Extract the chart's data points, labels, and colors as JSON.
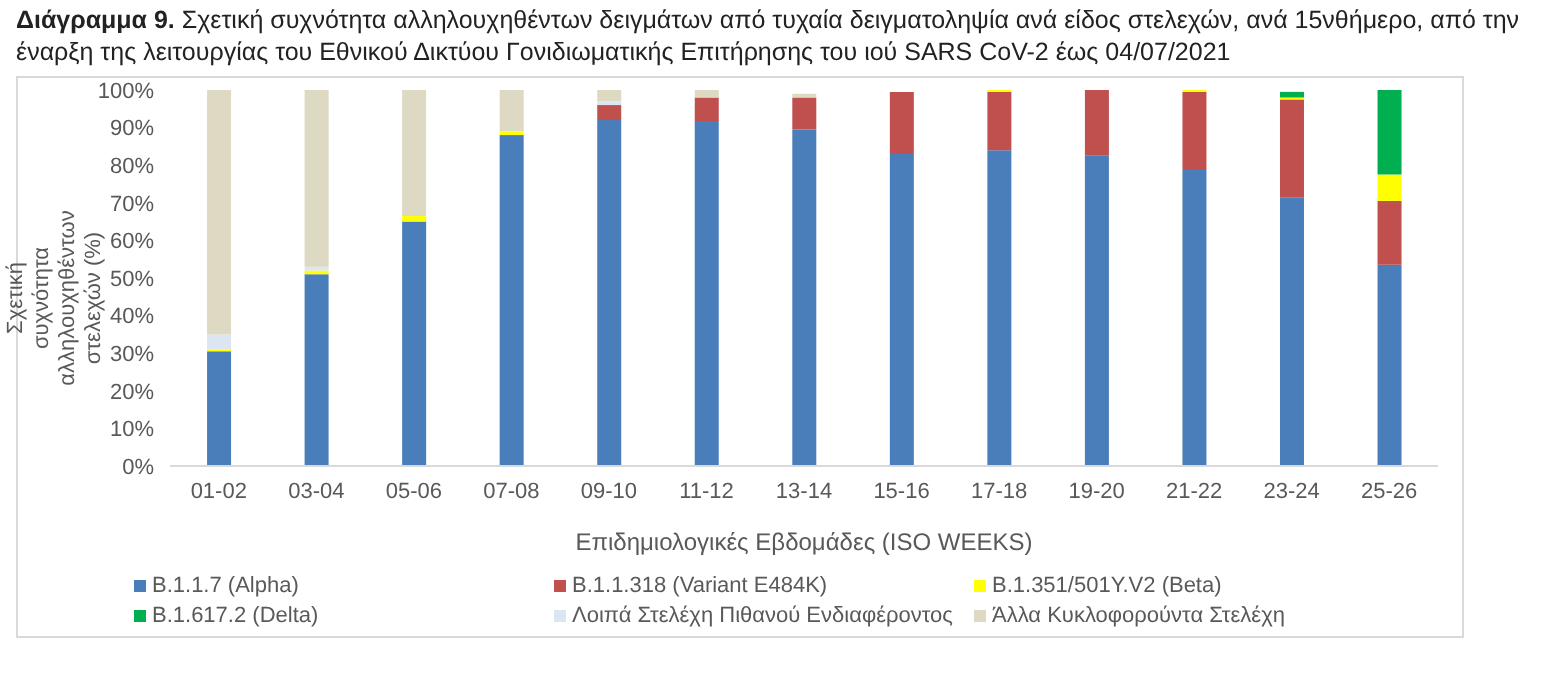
{
  "chart_data": {
    "type": "bar",
    "stacked": true,
    "title": "Διάγραμμα 9.",
    "subtitle": "Σχετική συχνότητα αλληλουχηθέντων δειγμάτων από τυχαία δειγματοληψία ανά είδος στελεχών, ανά 15νθήμερο, από την έναρξη της λειτουργίας του Εθνικού Δικτύου Γονιδιωματικής Επιτήρησης του ιού SARS CoV-2 έως 04/07/2021",
    "xlabel": "Επιδημιολογικές Εβδομάδες (ISO WEEKS)",
    "ylabel": "Σχετική συχνότητα αλληλουχηθέντων στελεχών (%)",
    "categories": [
      "01-02",
      "03-04",
      "05-06",
      "07-08",
      "09-10",
      "11-12",
      "13-14",
      "15-16",
      "17-18",
      "19-20",
      "21-22",
      "23-24",
      "25-26"
    ],
    "series": [
      {
        "name": "B.1.1.7 (Alpha)",
        "color": "#4a7ebb",
        "values": [
          30.5,
          51,
          65,
          88,
          92,
          91.5,
          89.5,
          83,
          84,
          82.5,
          79,
          71.5,
          53.5
        ]
      },
      {
        "name": "B.1.1.318 (Variant E484K)",
        "color": "#c0504d",
        "values": [
          0,
          0,
          0,
          0,
          4,
          6.5,
          8.5,
          16.5,
          15.5,
          17.5,
          20.5,
          26,
          17
        ]
      },
      {
        "name": "B.1.351/501Y.V2 (Beta)",
        "color": "#ffff00",
        "values": [
          0.5,
          1,
          1.5,
          1,
          0,
          0,
          0,
          0,
          0.5,
          0,
          0.5,
          0.5,
          7
        ]
      },
      {
        "name": "B.1.617.2 (Delta)",
        "color": "#00b050",
        "values": [
          0,
          0,
          0,
          0,
          0,
          0,
          0,
          0,
          0,
          0,
          0,
          1.5,
          22.5
        ]
      },
      {
        "name": "Λοιπά Στελέχη Πιθανού Ενδιαφέροντος",
        "color": "#dce6f2",
        "values": [
          4,
          1,
          0,
          0,
          1,
          0,
          0,
          0,
          0,
          0,
          0,
          0,
          0
        ]
      },
      {
        "name": "Άλλα Κυκλοφορούντα Στελέχη",
        "color": "#ddd9c3",
        "values": [
          65,
          47,
          33.5,
          11,
          3,
          2,
          1,
          null,
          0,
          0,
          0,
          null,
          0
        ]
      }
    ],
    "ylim": [
      0,
      100
    ],
    "yticks": [
      {
        "value": 0,
        "label": "0%"
      },
      {
        "value": 10,
        "label": "10%"
      },
      {
        "value": 20,
        "label": "20%"
      },
      {
        "value": 30,
        "label": "30%"
      },
      {
        "value": 40,
        "label": "40%"
      },
      {
        "value": 50,
        "label": "50%"
      },
      {
        "value": 60,
        "label": "60%"
      },
      {
        "value": 70,
        "label": "70%"
      },
      {
        "value": 80,
        "label": "80%"
      },
      {
        "value": 90,
        "label": "90%"
      },
      {
        "value": 100,
        "label": "100%"
      }
    ],
    "grid": false,
    "legend": "bottom"
  }
}
